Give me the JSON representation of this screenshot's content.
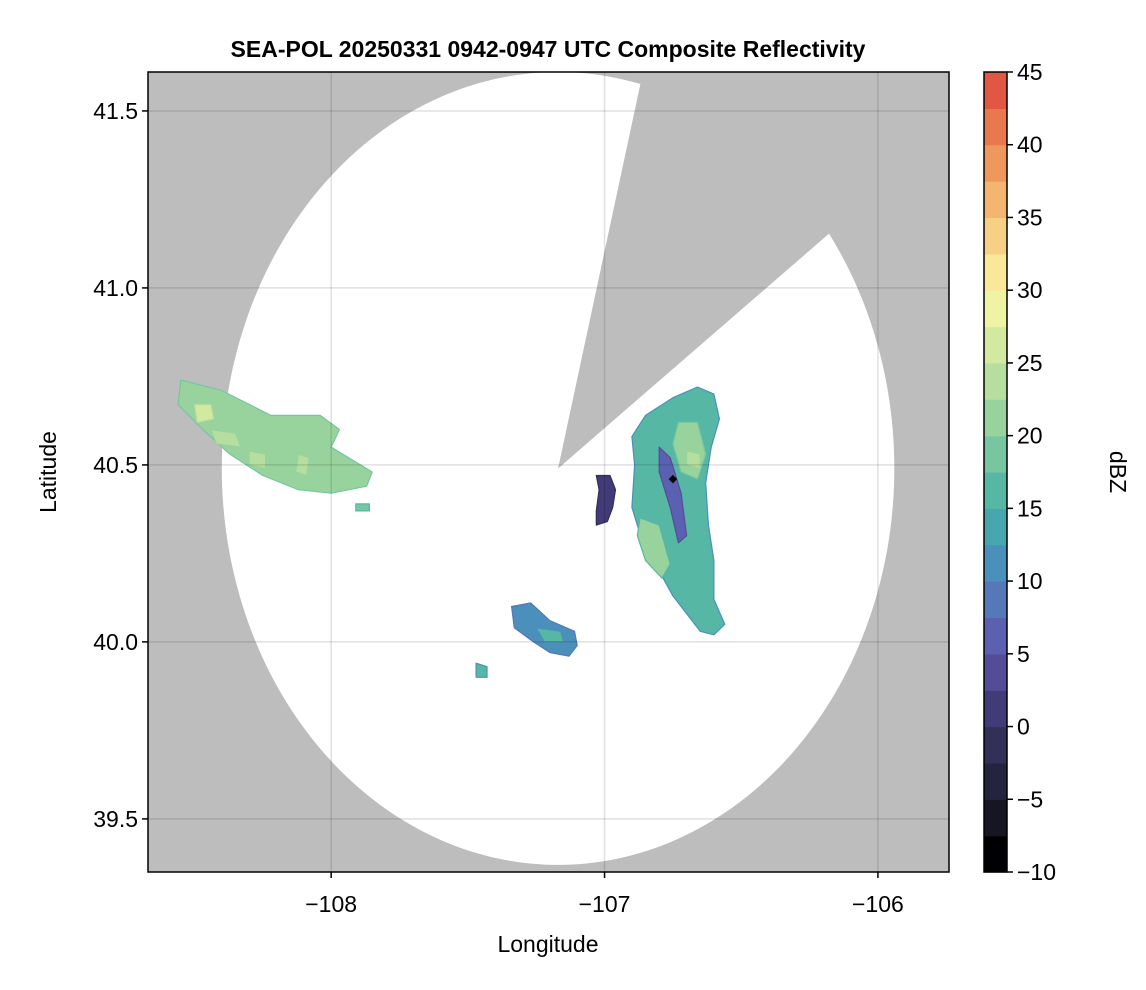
{
  "chart_data": {
    "type": "heatmap",
    "title": "SEA-POL 20250331 0942-0947 UTC Composite Reflectivity",
    "xlabel": "Longitude",
    "ylabel": "Latitude",
    "xlim": [
      -108.67,
      -105.74
    ],
    "ylim": [
      39.35,
      41.61
    ],
    "x_ticks": [
      -108,
      -107,
      -106
    ],
    "x_tick_labels": [
      "−108",
      "−107",
      "−106"
    ],
    "y_ticks": [
      39.5,
      40.0,
      40.5,
      41.0,
      41.5
    ],
    "y_tick_labels": [
      "39.5",
      "40.0",
      "40.5",
      "41.0",
      "41.5"
    ],
    "grid": true,
    "background_color": "#bdbdbd",
    "radar": {
      "center_lon": -107.17,
      "center_lat": 40.49,
      "range_lon": 1.23,
      "range_lat": 1.12,
      "blocked_sector": {
        "edge1": [
          -106.83,
          41.53
        ],
        "edge2": [
          -106.06,
          41.12
        ]
      },
      "site_marker": [
        -106.75,
        40.46
      ]
    },
    "colorbar": {
      "label": "dBZ",
      "min": -10,
      "max": 45,
      "step": 2.5,
      "ticks": [
        -10,
        -5,
        0,
        5,
        10,
        15,
        20,
        25,
        30,
        35,
        40,
        45
      ],
      "tick_labels": [
        "−10",
        "−5",
        "0",
        "5",
        "10",
        "15",
        "20",
        "25",
        "30",
        "35",
        "40",
        "45"
      ],
      "colors": [
        "#000004",
        "#161622",
        "#25243e",
        "#333058",
        "#413b78",
        "#544c97",
        "#5b61b0",
        "#5478b8",
        "#4a90ba",
        "#47a6ae",
        "#57b7a5",
        "#77c6a0",
        "#98d39d",
        "#b6de9f",
        "#d4e9a0",
        "#eef4a4",
        "#fae89a",
        "#f7d085",
        "#f3b56f",
        "#ef985d",
        "#e9784e",
        "#e25644",
        "#d13a40",
        "#b81e48",
        "#c42e72",
        "#d8499a",
        "#e777b8",
        "#e89fd2",
        "#c993c9",
        "#a471b2",
        "#7e4a93",
        "#5a2a70",
        "#3c0f4e"
      ]
    },
    "echoes": [
      {
        "name": "west-cluster",
        "dbz": 21,
        "polygon": [
          [
            -108.55,
            40.74
          ],
          [
            -108.4,
            40.71
          ],
          [
            -108.22,
            40.64
          ],
          [
            -108.04,
            40.64
          ],
          [
            -107.97,
            40.6
          ],
          [
            -108.0,
            40.55
          ],
          [
            -107.85,
            40.48
          ],
          [
            -107.87,
            40.44
          ],
          [
            -108.0,
            40.42
          ],
          [
            -108.12,
            40.43
          ],
          [
            -108.25,
            40.47
          ],
          [
            -108.37,
            40.53
          ],
          [
            -108.47,
            40.6
          ],
          [
            -108.56,
            40.67
          ]
        ]
      },
      {
        "name": "west-cluster-core1",
        "dbz": 26,
        "polygon": [
          [
            -108.5,
            40.67
          ],
          [
            -108.44,
            40.67
          ],
          [
            -108.43,
            40.63
          ],
          [
            -108.49,
            40.62
          ]
        ]
      },
      {
        "name": "west-cluster-core2",
        "dbz": 24,
        "polygon": [
          [
            -108.44,
            40.6
          ],
          [
            -108.35,
            40.59
          ],
          [
            -108.33,
            40.55
          ],
          [
            -108.42,
            40.56
          ]
        ]
      },
      {
        "name": "west-cluster-core3",
        "dbz": 24,
        "polygon": [
          [
            -108.3,
            40.54
          ],
          [
            -108.24,
            40.53
          ],
          [
            -108.24,
            40.49
          ],
          [
            -108.3,
            40.5
          ]
        ]
      },
      {
        "name": "west-cluster-core4",
        "dbz": 23,
        "polygon": [
          [
            -108.12,
            40.53
          ],
          [
            -108.08,
            40.52
          ],
          [
            -108.09,
            40.47
          ],
          [
            -108.13,
            40.48
          ]
        ]
      },
      {
        "name": "west-speck",
        "dbz": 18,
        "polygon": [
          [
            -107.91,
            40.39
          ],
          [
            -107.86,
            40.39
          ],
          [
            -107.86,
            40.37
          ],
          [
            -107.91,
            40.37
          ]
        ]
      },
      {
        "name": "central-blue-echo",
        "dbz": 1,
        "polygon": [
          [
            -107.03,
            40.47
          ],
          [
            -106.98,
            40.47
          ],
          [
            -106.96,
            40.43
          ],
          [
            -106.97,
            40.38
          ],
          [
            -106.99,
            40.34
          ],
          [
            -107.03,
            40.33
          ],
          [
            -107.03,
            40.37
          ],
          [
            -107.02,
            40.43
          ]
        ]
      },
      {
        "name": "south-echo",
        "dbz": 11,
        "polygon": [
          [
            -107.34,
            40.1
          ],
          [
            -107.27,
            40.11
          ],
          [
            -107.2,
            40.06
          ],
          [
            -107.11,
            40.03
          ],
          [
            -107.1,
            39.99
          ],
          [
            -107.13,
            39.96
          ],
          [
            -107.2,
            39.97
          ],
          [
            -107.26,
            40.0
          ],
          [
            -107.33,
            40.04
          ]
        ]
      },
      {
        "name": "south-echo-core",
        "dbz": 15,
        "polygon": [
          [
            -107.25,
            40.04
          ],
          [
            -107.16,
            40.03
          ],
          [
            -107.15,
            40.0
          ],
          [
            -107.22,
            40.0
          ]
        ]
      },
      {
        "name": "south-small-echo",
        "dbz": 15,
        "polygon": [
          [
            -107.47,
            39.94
          ],
          [
            -107.43,
            39.93
          ],
          [
            -107.43,
            39.9
          ],
          [
            -107.47,
            39.9
          ]
        ]
      },
      {
        "name": "east-band",
        "dbz": 15,
        "polygon": [
          [
            -106.85,
            40.64
          ],
          [
            -106.75,
            40.69
          ],
          [
            -106.66,
            40.72
          ],
          [
            -106.6,
            40.7
          ],
          [
            -106.58,
            40.63
          ],
          [
            -106.61,
            40.55
          ],
          [
            -106.63,
            40.45
          ],
          [
            -106.62,
            40.33
          ],
          [
            -106.6,
            40.23
          ],
          [
            -106.6,
            40.12
          ],
          [
            -106.56,
            40.05
          ],
          [
            -106.6,
            40.02
          ],
          [
            -106.65,
            40.03
          ],
          [
            -106.69,
            40.07
          ],
          [
            -106.75,
            40.13
          ],
          [
            -106.8,
            40.2
          ],
          [
            -106.86,
            40.28
          ],
          [
            -106.9,
            40.38
          ],
          [
            -106.89,
            40.5
          ],
          [
            -106.9,
            40.58
          ]
        ]
      },
      {
        "name": "east-band-blue-lane",
        "dbz": 7,
        "polygon": [
          [
            -106.8,
            40.55
          ],
          [
            -106.76,
            40.52
          ],
          [
            -106.72,
            40.42
          ],
          [
            -106.7,
            40.3
          ],
          [
            -106.73,
            40.28
          ],
          [
            -106.76,
            40.38
          ],
          [
            -106.8,
            40.48
          ]
        ]
      },
      {
        "name": "east-band-core-north",
        "dbz": 21,
        "polygon": [
          [
            -106.73,
            40.62
          ],
          [
            -106.66,
            40.62
          ],
          [
            -106.63,
            40.53
          ],
          [
            -106.66,
            40.46
          ],
          [
            -106.72,
            40.48
          ],
          [
            -106.75,
            40.56
          ]
        ]
      },
      {
        "name": "east-band-core-max",
        "dbz": 24,
        "polygon": [
          [
            -106.7,
            40.54
          ],
          [
            -106.65,
            40.53
          ],
          [
            -106.65,
            40.49
          ],
          [
            -106.7,
            40.5
          ]
        ]
      },
      {
        "name": "east-band-core-south",
        "dbz": 20,
        "polygon": [
          [
            -106.87,
            40.35
          ],
          [
            -106.8,
            40.33
          ],
          [
            -106.76,
            40.22
          ],
          [
            -106.79,
            40.18
          ],
          [
            -106.85,
            40.23
          ],
          [
            -106.88,
            40.3
          ]
        ]
      }
    ]
  }
}
